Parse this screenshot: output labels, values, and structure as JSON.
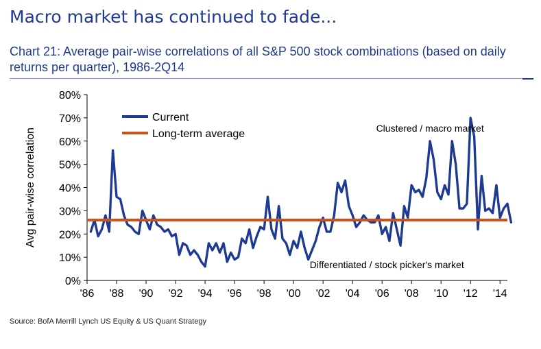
{
  "header": {
    "headline": "Macro market has continued to fade...",
    "subtitle": "Chart 21: Average pair-wise correlations of all S&P 500 stock combinations (based on daily returns per quarter), 1986-2Q14"
  },
  "footer": {
    "source": "Source: BofA Merrill Lynch US Equity & US Quant Strategy"
  },
  "chart_data": {
    "type": "line",
    "title": "",
    "xlabel": "",
    "ylabel": "Avg pair-wise correlation",
    "xlim": [
      1986,
      2014.5
    ],
    "ylim": [
      0,
      80
    ],
    "y_ticks": [
      0,
      10,
      20,
      30,
      40,
      50,
      60,
      70,
      80
    ],
    "y_tick_labels": [
      "0%",
      "10%",
      "20%",
      "30%",
      "40%",
      "50%",
      "60%",
      "70%",
      "80%"
    ],
    "x_ticks": [
      1986,
      1988,
      1990,
      1992,
      1994,
      1996,
      1998,
      2000,
      2002,
      2004,
      2006,
      2008,
      2010,
      2012,
      2014
    ],
    "x_tick_labels": [
      "'86",
      "'88",
      "'90",
      "'92",
      "'94",
      "'96",
      "'98",
      "'00",
      "'02",
      "'04",
      "'06",
      "'08",
      "'10",
      "'12",
      "'14"
    ],
    "grid": false,
    "legend_position": "top-left",
    "series": [
      {
        "name": "Current",
        "color": "#1f3a93",
        "points": [
          [
            1986.25,
            21
          ],
          [
            1986.5,
            26
          ],
          [
            1986.75,
            19
          ],
          [
            1987.0,
            22
          ],
          [
            1987.25,
            28
          ],
          [
            1987.5,
            21
          ],
          [
            1987.75,
            56
          ],
          [
            1988.0,
            36
          ],
          [
            1988.25,
            35
          ],
          [
            1988.5,
            28
          ],
          [
            1988.75,
            24
          ],
          [
            1989.0,
            23
          ],
          [
            1989.25,
            21
          ],
          [
            1989.5,
            20
          ],
          [
            1989.75,
            30
          ],
          [
            1990.0,
            26
          ],
          [
            1990.25,
            22
          ],
          [
            1990.5,
            28
          ],
          [
            1990.75,
            24
          ],
          [
            1991.0,
            23
          ],
          [
            1991.25,
            21
          ],
          [
            1991.5,
            22
          ],
          [
            1991.75,
            19
          ],
          [
            1992.0,
            20
          ],
          [
            1992.25,
            11
          ],
          [
            1992.5,
            16
          ],
          [
            1992.75,
            15
          ],
          [
            1993.0,
            11
          ],
          [
            1993.25,
            13
          ],
          [
            1993.5,
            11
          ],
          [
            1993.75,
            8
          ],
          [
            1994.0,
            6
          ],
          [
            1994.25,
            16
          ],
          [
            1994.5,
            13
          ],
          [
            1994.75,
            16
          ],
          [
            1995.0,
            12
          ],
          [
            1995.25,
            16
          ],
          [
            1995.5,
            8
          ],
          [
            1995.75,
            12
          ],
          [
            1996.0,
            9
          ],
          [
            1996.25,
            10
          ],
          [
            1996.5,
            18
          ],
          [
            1996.75,
            16
          ],
          [
            1997.0,
            22
          ],
          [
            1997.25,
            14
          ],
          [
            1997.5,
            19
          ],
          [
            1997.75,
            23
          ],
          [
            1998.0,
            22
          ],
          [
            1998.25,
            36
          ],
          [
            1998.5,
            22
          ],
          [
            1998.75,
            18
          ],
          [
            1999.0,
            32
          ],
          [
            1999.25,
            18
          ],
          [
            1999.5,
            16
          ],
          [
            1999.75,
            11
          ],
          [
            2000.0,
            17
          ],
          [
            2000.25,
            14
          ],
          [
            2000.5,
            21
          ],
          [
            2000.75,
            14
          ],
          [
            2001.0,
            9
          ],
          [
            2001.25,
            13
          ],
          [
            2001.5,
            17
          ],
          [
            2001.75,
            23
          ],
          [
            2002.0,
            27
          ],
          [
            2002.25,
            21
          ],
          [
            2002.5,
            21
          ],
          [
            2002.75,
            28
          ],
          [
            2003.0,
            42
          ],
          [
            2003.25,
            38
          ],
          [
            2003.5,
            43
          ],
          [
            2003.75,
            32
          ],
          [
            2004.0,
            28
          ],
          [
            2004.25,
            23
          ],
          [
            2004.5,
            25
          ],
          [
            2004.75,
            28
          ],
          [
            2005.0,
            26
          ],
          [
            2005.25,
            25
          ],
          [
            2005.5,
            25
          ],
          [
            2005.75,
            28
          ],
          [
            2006.0,
            20
          ],
          [
            2006.25,
            23
          ],
          [
            2006.5,
            17
          ],
          [
            2006.75,
            29
          ],
          [
            2007.0,
            22
          ],
          [
            2007.25,
            15
          ],
          [
            2007.5,
            32
          ],
          [
            2007.75,
            27
          ],
          [
            2008.0,
            41
          ],
          [
            2008.25,
            38
          ],
          [
            2008.5,
            39
          ],
          [
            2008.75,
            36
          ],
          [
            2009.0,
            44
          ],
          [
            2009.25,
            60
          ],
          [
            2009.5,
            52
          ],
          [
            2009.75,
            38
          ],
          [
            2010.0,
            35
          ],
          [
            2010.25,
            41
          ],
          [
            2010.5,
            37
          ],
          [
            2010.75,
            60
          ],
          [
            2011.0,
            50
          ],
          [
            2011.25,
            31
          ],
          [
            2011.5,
            31
          ],
          [
            2011.75,
            33
          ],
          [
            2012.0,
            70
          ],
          [
            2012.25,
            62
          ],
          [
            2012.5,
            22
          ],
          [
            2012.75,
            45
          ],
          [
            2013.0,
            30
          ],
          [
            2013.25,
            31
          ],
          [
            2013.5,
            29
          ],
          [
            2013.75,
            41
          ],
          [
            2014.0,
            27
          ],
          [
            2014.25,
            31
          ],
          [
            2014.5,
            33
          ],
          [
            2014.75,
            25
          ]
        ]
      },
      {
        "name": "Long-term average",
        "color": "#c8541c",
        "constant": 26
      }
    ],
    "annotations": [
      {
        "text": "Clustered / macro market",
        "x": 2005.6,
        "y": 64
      },
      {
        "text": "Differentiated / stock picker's market",
        "x": 2001.1,
        "y": 5.3
      }
    ]
  }
}
